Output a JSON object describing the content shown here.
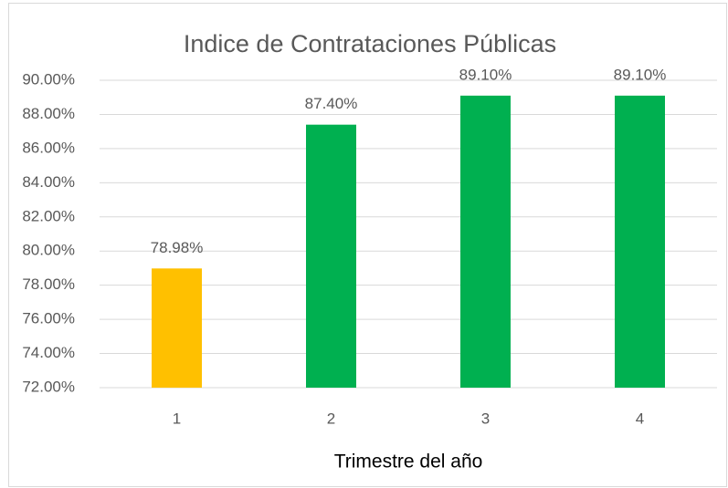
{
  "chart_data": {
    "type": "bar",
    "title": "Indice de Contrataciones Públicas",
    "x_label": "Trimestre del año",
    "categories": [
      "1",
      "2",
      "3",
      "4"
    ],
    "values": [
      78.98,
      87.4,
      89.1,
      89.1
    ],
    "value_labels": [
      "78.98%",
      "87.40%",
      "89.10%",
      "89.10%"
    ],
    "colors": [
      "#ffc000",
      "#00b050",
      "#00b050",
      "#00b050"
    ],
    "ylim": [
      72,
      90
    ],
    "yticks": [
      {
        "value": 72,
        "label": "72.00%"
      },
      {
        "value": 74,
        "label": "74.00%"
      },
      {
        "value": 76,
        "label": "76.00%"
      },
      {
        "value": 78,
        "label": "78.00%"
      },
      {
        "value": 80,
        "label": "80.00%"
      },
      {
        "value": 82,
        "label": "82.00%"
      },
      {
        "value": 84,
        "label": "84.00%"
      },
      {
        "value": 86,
        "label": "86.00%"
      },
      {
        "value": 88,
        "label": "88.00%"
      },
      {
        "value": 90,
        "label": "90.00%"
      }
    ],
    "grid": true
  }
}
